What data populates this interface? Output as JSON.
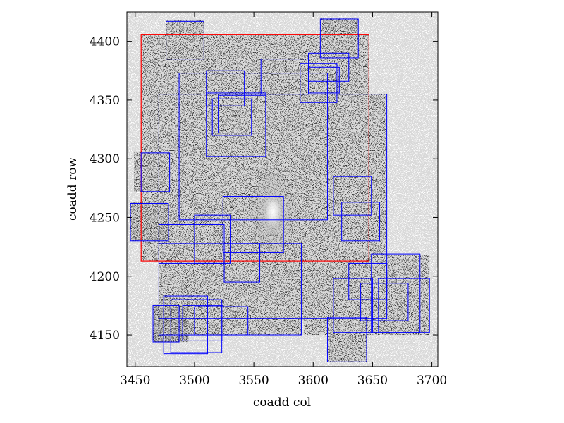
{
  "chart_data": {
    "type": "image",
    "title": "",
    "xlabel": "coadd col",
    "ylabel": "coadd row",
    "xlim": [
      3443,
      3705
    ],
    "ylim": [
      4123,
      4425
    ],
    "xticks": [
      3450,
      3500,
      3550,
      3600,
      3650,
      3700
    ],
    "yticks": [
      4150,
      4200,
      4250,
      4300,
      4350,
      4400
    ],
    "xtick_labels": [
      "3450",
      "3500",
      "3550",
      "3600",
      "3650",
      "3700"
    ],
    "ytick_labels": [
      "4150",
      "4200",
      "4250",
      "4300",
      "4350",
      "4400"
    ],
    "image_background_color": "#3a3a3a",
    "noise_light_color": "#d9d9d9",
    "galaxy_center": [
      3566,
      4255
    ],
    "box_color": "#0000ff",
    "region_color": "#ff0000",
    "red_region": {
      "x0": 3455,
      "x1": 3647,
      "y0": 4213,
      "y1": 4406
    },
    "image_patches": [
      {
        "x0": 3470,
        "x1": 3662,
        "y0": 4163,
        "y1": 4355
      },
      {
        "x0": 3455,
        "x1": 3647,
        "y0": 4213,
        "y1": 4406
      },
      {
        "x0": 3487,
        "x1": 3612,
        "y0": 4248,
        "y1": 4373
      },
      {
        "x0": 3558,
        "x1": 3662,
        "y0": 4252,
        "y1": 4355
      },
      {
        "x0": 3470,
        "x1": 3590,
        "y0": 4150,
        "y1": 4230
      },
      {
        "x0": 3592,
        "x1": 3698,
        "y0": 4150,
        "y1": 4218
      },
      {
        "x0": 3612,
        "x1": 3645,
        "y0": 4127,
        "y1": 4170
      },
      {
        "x0": 3476,
        "x1": 3508,
        "y0": 4386,
        "y1": 4418
      },
      {
        "x0": 3606,
        "x1": 3638,
        "y0": 4386,
        "y1": 4420
      },
      {
        "x0": 3449,
        "x1": 3476,
        "y0": 4272,
        "y1": 4306
      },
      {
        "x0": 3446,
        "x1": 3478,
        "y0": 4230,
        "y1": 4263
      },
      {
        "x0": 3465,
        "x1": 3495,
        "y0": 4144,
        "y1": 4176
      }
    ],
    "boxes": [
      {
        "x0": 3455,
        "x1": 3479,
        "y0": 4272,
        "y1": 4305
      },
      {
        "x0": 3446,
        "x1": 3478,
        "y0": 4230,
        "y1": 4262
      },
      {
        "x0": 3470,
        "x1": 3525,
        "y0": 4211,
        "y1": 4244
      },
      {
        "x0": 3465,
        "x1": 3487,
        "y0": 4144,
        "y1": 4175
      },
      {
        "x0": 3474,
        "x1": 3511,
        "y0": 4134,
        "y1": 4183
      },
      {
        "x0": 3480,
        "x1": 3523,
        "y0": 4135,
        "y1": 4180
      },
      {
        "x0": 3490,
        "x1": 3524,
        "y0": 4145,
        "y1": 4175
      },
      {
        "x0": 3500,
        "x1": 3545,
        "y0": 4150,
        "y1": 4174
      },
      {
        "x0": 3470,
        "x1": 3590,
        "y0": 4150,
        "y1": 4228
      },
      {
        "x0": 3500,
        "x1": 3530,
        "y0": 4211,
        "y1": 4252
      },
      {
        "x0": 3524,
        "x1": 3575,
        "y0": 4220,
        "y1": 4268
      },
      {
        "x0": 3525,
        "x1": 3555,
        "y0": 4195,
        "y1": 4228
      },
      {
        "x0": 3470,
        "x1": 3662,
        "y0": 4164,
        "y1": 4355
      },
      {
        "x0": 3487,
        "x1": 3612,
        "y0": 4248,
        "y1": 4373
      },
      {
        "x0": 3510,
        "x1": 3560,
        "y0": 4302,
        "y1": 4356
      },
      {
        "x0": 3515,
        "x1": 3548,
        "y0": 4320,
        "y1": 4351
      },
      {
        "x0": 3520,
        "x1": 3560,
        "y0": 4322,
        "y1": 4354
      },
      {
        "x0": 3510,
        "x1": 3542,
        "y0": 4345,
        "y1": 4375
      },
      {
        "x0": 3556,
        "x1": 3596,
        "y0": 4355,
        "y1": 4385
      },
      {
        "x0": 3589,
        "x1": 3620,
        "y0": 4348,
        "y1": 4381
      },
      {
        "x0": 3596,
        "x1": 3622,
        "y0": 4356,
        "y1": 4378
      },
      {
        "x0": 3596,
        "x1": 3630,
        "y0": 4366,
        "y1": 4390
      },
      {
        "x0": 3476,
        "x1": 3508,
        "y0": 4385,
        "y1": 4417
      },
      {
        "x0": 3606,
        "x1": 3638,
        "y0": 4386,
        "y1": 4419
      },
      {
        "x0": 3617,
        "x1": 3649,
        "y0": 4252,
        "y1": 4285
      },
      {
        "x0": 3624,
        "x1": 3656,
        "y0": 4230,
        "y1": 4263
      },
      {
        "x0": 3630,
        "x1": 3662,
        "y0": 4180,
        "y1": 4211
      },
      {
        "x0": 3640,
        "x1": 3680,
        "y0": 4162,
        "y1": 4194
      },
      {
        "x0": 3649,
        "x1": 3690,
        "y0": 4152,
        "y1": 4219
      },
      {
        "x0": 3655,
        "x1": 3698,
        "y0": 4152,
        "y1": 4198
      },
      {
        "x0": 3617,
        "x1": 3650,
        "y0": 4152,
        "y1": 4198
      },
      {
        "x0": 3612,
        "x1": 3645,
        "y0": 4127,
        "y1": 4165
      }
    ]
  }
}
